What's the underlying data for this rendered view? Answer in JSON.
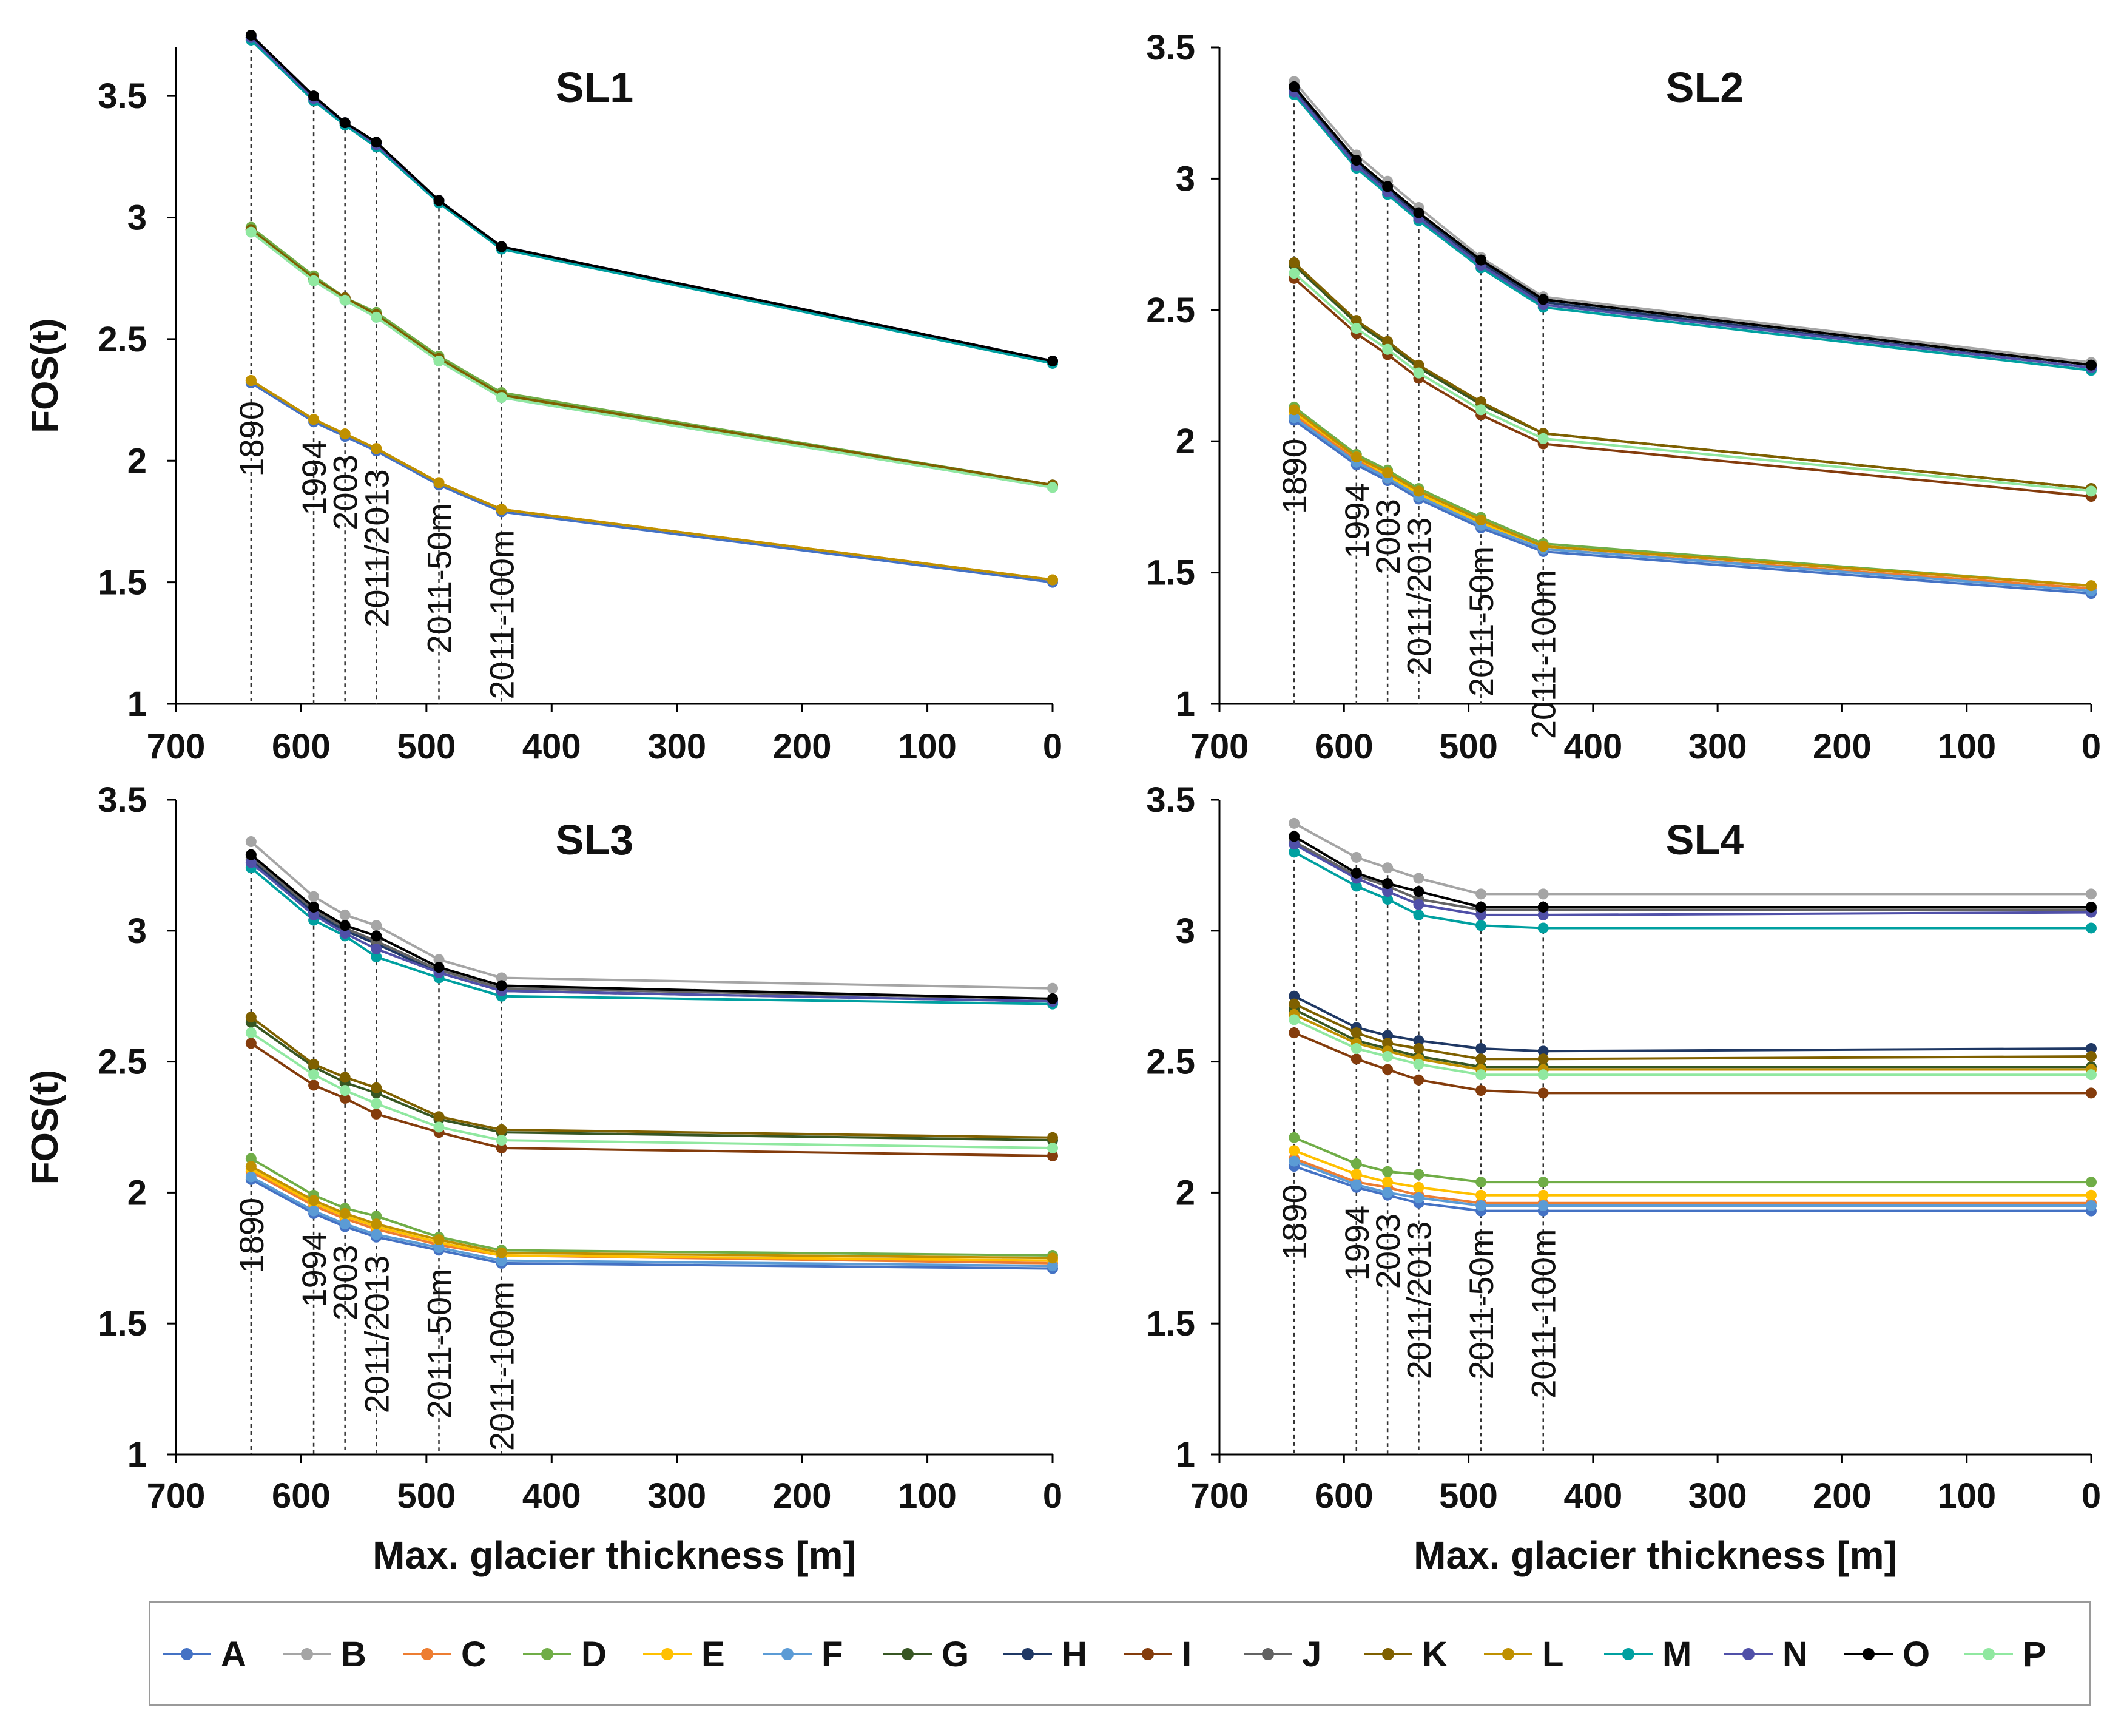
{
  "chart_data": [
    {
      "type": "line",
      "title": "SL1",
      "xlabel": "",
      "ylabel": "FOS(t)",
      "xlim": [
        700,
        0
      ],
      "ylim": [
        1,
        3.7
      ],
      "xticks": [
        "700",
        "600",
        "500",
        "400",
        "300",
        "200",
        "100",
        "0"
      ],
      "yticks": [
        "1",
        "1.5",
        "2",
        "2.5",
        "3",
        "3.5"
      ],
      "grid": false,
      "x": [
        640,
        590,
        565,
        540,
        490,
        440,
        0
      ],
      "markers": [
        {
          "x": 640,
          "label": "1890"
        },
        {
          "x": 590,
          "label": "1994"
        },
        {
          "x": 565,
          "label": "2003"
        },
        {
          "x": 540,
          "label": "2011/2013"
        },
        {
          "x": 490,
          "label": "2011-50m"
        },
        {
          "x": 440,
          "label": "2011-100m"
        }
      ],
      "series": [
        {
          "name": "A",
          "values": [
            2.32,
            2.16,
            2.1,
            2.04,
            1.9,
            1.79,
            1.5
          ]
        },
        {
          "name": "B",
          "values": [
            3.74,
            3.49,
            3.39,
            3.3,
            3.07,
            2.88,
            2.41
          ]
        },
        {
          "name": "C",
          "values": [
            2.33,
            2.17,
            2.11,
            2.05,
            1.91,
            1.8,
            1.51
          ]
        },
        {
          "name": "D",
          "values": [
            2.96,
            2.76,
            2.67,
            2.61,
            2.43,
            2.28,
            1.9
          ]
        },
        {
          "name": "E",
          "values": [
            2.33,
            2.17,
            2.11,
            2.05,
            1.91,
            1.8,
            1.51
          ]
        },
        {
          "name": "F",
          "values": [
            2.94,
            2.74,
            2.66,
            2.59,
            2.41,
            2.26,
            1.89
          ]
        },
        {
          "name": "G",
          "values": [
            2.95,
            2.75,
            2.67,
            2.6,
            2.42,
            2.27,
            1.9
          ]
        },
        {
          "name": "H",
          "values": [
            3.74,
            3.49,
            3.39,
            3.3,
            3.07,
            2.88,
            2.41
          ]
        },
        {
          "name": "I",
          "values": [
            2.95,
            2.75,
            2.67,
            2.6,
            2.42,
            2.27,
            1.9
          ]
        },
        {
          "name": "J",
          "values": [
            3.74,
            3.49,
            3.39,
            3.3,
            3.07,
            2.88,
            2.41
          ]
        },
        {
          "name": "K",
          "values": [
            2.95,
            2.75,
            2.67,
            2.6,
            2.42,
            2.27,
            1.9
          ]
        },
        {
          "name": "L",
          "values": [
            2.33,
            2.17,
            2.11,
            2.05,
            1.91,
            1.8,
            1.51
          ]
        },
        {
          "name": "M",
          "values": [
            3.73,
            3.48,
            3.38,
            3.29,
            3.06,
            2.87,
            2.4
          ]
        },
        {
          "name": "N",
          "values": [
            3.74,
            3.49,
            3.39,
            3.3,
            3.07,
            2.88,
            2.41
          ]
        },
        {
          "name": "O",
          "values": [
            3.75,
            3.5,
            3.39,
            3.31,
            3.07,
            2.88,
            2.41
          ]
        },
        {
          "name": "P",
          "values": [
            2.94,
            2.74,
            2.66,
            2.59,
            2.41,
            2.26,
            1.89
          ]
        }
      ]
    },
    {
      "type": "line",
      "title": "SL2",
      "xlabel": "",
      "ylabel": "",
      "xlim": [
        700,
        0
      ],
      "ylim": [
        1,
        3.5
      ],
      "xticks": [
        "700",
        "600",
        "500",
        "400",
        "300",
        "200",
        "100",
        "0"
      ],
      "yticks": [
        "1",
        "1.5",
        "2",
        "2.5",
        "3",
        "3.5"
      ],
      "grid": false,
      "x": [
        640,
        590,
        565,
        540,
        490,
        440,
        0
      ],
      "markers": [
        {
          "x": 640,
          "label": "1890"
        },
        {
          "x": 590,
          "label": "1994"
        },
        {
          "x": 565,
          "label": "2003"
        },
        {
          "x": 540,
          "label": "2011/2013"
        },
        {
          "x": 490,
          "label": "2011-50m"
        },
        {
          "x": 440,
          "label": "2011-100m"
        }
      ],
      "series": [
        {
          "name": "A",
          "values": [
            2.08,
            1.91,
            1.85,
            1.78,
            1.67,
            1.58,
            1.42
          ]
        },
        {
          "name": "B",
          "values": [
            3.37,
            3.09,
            2.99,
            2.89,
            2.7,
            2.55,
            2.3
          ]
        },
        {
          "name": "C",
          "values": [
            2.1,
            1.93,
            1.86,
            1.79,
            1.68,
            1.59,
            1.44
          ]
        },
        {
          "name": "D",
          "values": [
            2.13,
            1.95,
            1.89,
            1.82,
            1.71,
            1.61,
            1.45
          ]
        },
        {
          "name": "E",
          "values": [
            2.11,
            1.94,
            1.87,
            1.8,
            1.69,
            1.6,
            1.45
          ]
        },
        {
          "name": "F",
          "values": [
            2.09,
            1.92,
            1.86,
            1.79,
            1.68,
            1.59,
            1.43
          ]
        },
        {
          "name": "G",
          "values": [
            2.67,
            2.45,
            2.37,
            2.28,
            2.14,
            2.03,
            1.82
          ]
        },
        {
          "name": "H",
          "values": [
            3.34,
            3.06,
            2.96,
            2.86,
            2.68,
            2.53,
            2.28
          ]
        },
        {
          "name": "I",
          "values": [
            2.62,
            2.41,
            2.33,
            2.24,
            2.1,
            1.99,
            1.79
          ]
        },
        {
          "name": "J",
          "values": [
            3.35,
            3.07,
            2.97,
            2.87,
            2.69,
            2.54,
            2.29
          ]
        },
        {
          "name": "K",
          "values": [
            2.68,
            2.46,
            2.38,
            2.29,
            2.15,
            2.03,
            1.82
          ]
        },
        {
          "name": "L",
          "values": [
            2.12,
            1.94,
            1.88,
            1.81,
            1.7,
            1.6,
            1.45
          ]
        },
        {
          "name": "M",
          "values": [
            3.32,
            3.04,
            2.94,
            2.84,
            2.66,
            2.51,
            2.27
          ]
        },
        {
          "name": "N",
          "values": [
            3.33,
            3.05,
            2.95,
            2.85,
            2.67,
            2.52,
            2.28
          ]
        },
        {
          "name": "O",
          "values": [
            3.35,
            3.07,
            2.97,
            2.87,
            2.69,
            2.54,
            2.29
          ]
        },
        {
          "name": "P",
          "values": [
            2.64,
            2.43,
            2.35,
            2.26,
            2.12,
            2.01,
            1.81
          ]
        }
      ]
    },
    {
      "type": "line",
      "title": "SL3",
      "xlabel": "Max. glacier thickness [m]",
      "ylabel": "FOS(t)",
      "xlim": [
        700,
        0
      ],
      "ylim": [
        1,
        3.5
      ],
      "xticks": [
        "700",
        "600",
        "500",
        "400",
        "300",
        "200",
        "100",
        "0"
      ],
      "yticks": [
        "1",
        "1.5",
        "2",
        "2.5",
        "3",
        "3.5"
      ],
      "grid": false,
      "x": [
        640,
        590,
        565,
        540,
        490,
        440,
        0
      ],
      "markers": [
        {
          "x": 640,
          "label": "1890"
        },
        {
          "x": 590,
          "label": "1994"
        },
        {
          "x": 565,
          "label": "2003"
        },
        {
          "x": 540,
          "label": "2011/2013"
        },
        {
          "x": 490,
          "label": "2011-50m"
        },
        {
          "x": 440,
          "label": "2011-100m"
        }
      ],
      "series": [
        {
          "name": "A",
          "values": [
            2.05,
            1.92,
            1.87,
            1.83,
            1.78,
            1.73,
            1.71
          ]
        },
        {
          "name": "B",
          "values": [
            3.34,
            3.13,
            3.06,
            3.02,
            2.89,
            2.82,
            2.78
          ]
        },
        {
          "name": "C",
          "values": [
            2.08,
            1.95,
            1.9,
            1.86,
            1.8,
            1.76,
            1.73
          ]
        },
        {
          "name": "D",
          "values": [
            2.13,
            1.99,
            1.94,
            1.91,
            1.83,
            1.78,
            1.76
          ]
        },
        {
          "name": "E",
          "values": [
            2.09,
            1.96,
            1.91,
            1.87,
            1.81,
            1.76,
            1.74
          ]
        },
        {
          "name": "F",
          "values": [
            2.06,
            1.93,
            1.88,
            1.84,
            1.79,
            1.74,
            1.72
          ]
        },
        {
          "name": "G",
          "values": [
            2.65,
            2.48,
            2.42,
            2.38,
            2.28,
            2.23,
            2.2
          ]
        },
        {
          "name": "H",
          "values": [
            3.27,
            3.07,
            3.0,
            2.95,
            2.84,
            2.77,
            2.73
          ]
        },
        {
          "name": "I",
          "values": [
            2.57,
            2.41,
            2.36,
            2.3,
            2.23,
            2.17,
            2.14
          ]
        },
        {
          "name": "J",
          "values": [
            3.28,
            3.08,
            3.01,
            2.96,
            2.85,
            2.78,
            2.74
          ]
        },
        {
          "name": "K",
          "values": [
            2.67,
            2.49,
            2.44,
            2.4,
            2.29,
            2.24,
            2.21
          ]
        },
        {
          "name": "L",
          "values": [
            2.1,
            1.97,
            1.92,
            1.88,
            1.82,
            1.77,
            1.75
          ]
        },
        {
          "name": "M",
          "values": [
            3.24,
            3.04,
            2.98,
            2.9,
            2.82,
            2.75,
            2.72
          ]
        },
        {
          "name": "N",
          "values": [
            3.26,
            3.06,
            2.99,
            2.93,
            2.84,
            2.77,
            2.73
          ]
        },
        {
          "name": "O",
          "values": [
            3.29,
            3.09,
            3.02,
            2.98,
            2.86,
            2.79,
            2.74
          ]
        },
        {
          "name": "P",
          "values": [
            2.61,
            2.45,
            2.39,
            2.34,
            2.25,
            2.2,
            2.17
          ]
        }
      ]
    },
    {
      "type": "line",
      "title": "SL4",
      "xlabel": "Max. glacier thickness [m]",
      "ylabel": "",
      "xlim": [
        700,
        0
      ],
      "ylim": [
        1,
        3.5
      ],
      "xticks": [
        "700",
        "600",
        "500",
        "400",
        "300",
        "200",
        "100",
        "0"
      ],
      "yticks": [
        "1",
        "1.5",
        "2",
        "2.5",
        "3",
        "3.5"
      ],
      "grid": false,
      "x": [
        640,
        590,
        565,
        540,
        490,
        440,
        0
      ],
      "markers": [
        {
          "x": 640,
          "label": "1890"
        },
        {
          "x": 590,
          "label": "1994"
        },
        {
          "x": 565,
          "label": "2003"
        },
        {
          "x": 540,
          "label": "2011/2013"
        },
        {
          "x": 490,
          "label": "2011-50m"
        },
        {
          "x": 440,
          "label": "2011-100m"
        }
      ],
      "series": [
        {
          "name": "A",
          "values": [
            2.1,
            2.02,
            1.99,
            1.96,
            1.93,
            1.93,
            1.93
          ]
        },
        {
          "name": "B",
          "values": [
            3.41,
            3.28,
            3.24,
            3.2,
            3.14,
            3.14,
            3.14
          ]
        },
        {
          "name": "C",
          "values": [
            2.13,
            2.04,
            2.02,
            1.99,
            1.96,
            1.96,
            1.96
          ]
        },
        {
          "name": "D",
          "values": [
            2.21,
            2.11,
            2.08,
            2.07,
            2.04,
            2.04,
            2.04
          ]
        },
        {
          "name": "E",
          "values": [
            2.16,
            2.07,
            2.04,
            2.02,
            1.99,
            1.99,
            1.99
          ]
        },
        {
          "name": "F",
          "values": [
            2.12,
            2.03,
            2.0,
            1.98,
            1.95,
            1.95,
            1.95
          ]
        },
        {
          "name": "G",
          "values": [
            2.7,
            2.58,
            2.55,
            2.52,
            2.48,
            2.48,
            2.48
          ]
        },
        {
          "name": "H",
          "values": [
            2.75,
            2.63,
            2.6,
            2.58,
            2.55,
            2.54,
            2.55
          ]
        },
        {
          "name": "I",
          "values": [
            2.61,
            2.51,
            2.47,
            2.43,
            2.39,
            2.38,
            2.38
          ]
        },
        {
          "name": "J",
          "values": [
            3.34,
            3.21,
            3.17,
            3.12,
            3.08,
            3.08,
            3.08
          ]
        },
        {
          "name": "K",
          "values": [
            2.72,
            2.61,
            2.57,
            2.55,
            2.51,
            2.51,
            2.52
          ]
        },
        {
          "name": "L",
          "values": [
            2.68,
            2.57,
            2.54,
            2.51,
            2.47,
            2.47,
            2.47
          ]
        },
        {
          "name": "M",
          "values": [
            3.3,
            3.17,
            3.12,
            3.06,
            3.02,
            3.01,
            3.01
          ]
        },
        {
          "name": "N",
          "values": [
            3.33,
            3.2,
            3.15,
            3.1,
            3.06,
            3.06,
            3.07
          ]
        },
        {
          "name": "O",
          "values": [
            3.36,
            3.22,
            3.18,
            3.15,
            3.09,
            3.09,
            3.09
          ]
        },
        {
          "name": "P",
          "values": [
            2.66,
            2.55,
            2.52,
            2.49,
            2.45,
            2.45,
            2.45
          ]
        }
      ]
    }
  ],
  "legend": {
    "placement": "bottom",
    "items": [
      {
        "name": "A",
        "color": "#4472c4"
      },
      {
        "name": "B",
        "color": "#a5a5a5"
      },
      {
        "name": "C",
        "color": "#ed7d31"
      },
      {
        "name": "D",
        "color": "#70ad47"
      },
      {
        "name": "E",
        "color": "#ffc000"
      },
      {
        "name": "F",
        "color": "#5b9bd5"
      },
      {
        "name": "G",
        "color": "#375623"
      },
      {
        "name": "H",
        "color": "#1f3864"
      },
      {
        "name": "I",
        "color": "#843c0c"
      },
      {
        "name": "J",
        "color": "#636363"
      },
      {
        "name": "K",
        "color": "#7f6000"
      },
      {
        "name": "L",
        "color": "#bf9000"
      },
      {
        "name": "M",
        "color": "#00a0a0"
      },
      {
        "name": "N",
        "color": "#5050a8"
      },
      {
        "name": "O",
        "color": "#000000"
      },
      {
        "name": "P",
        "color": "#90e8a0"
      }
    ]
  }
}
